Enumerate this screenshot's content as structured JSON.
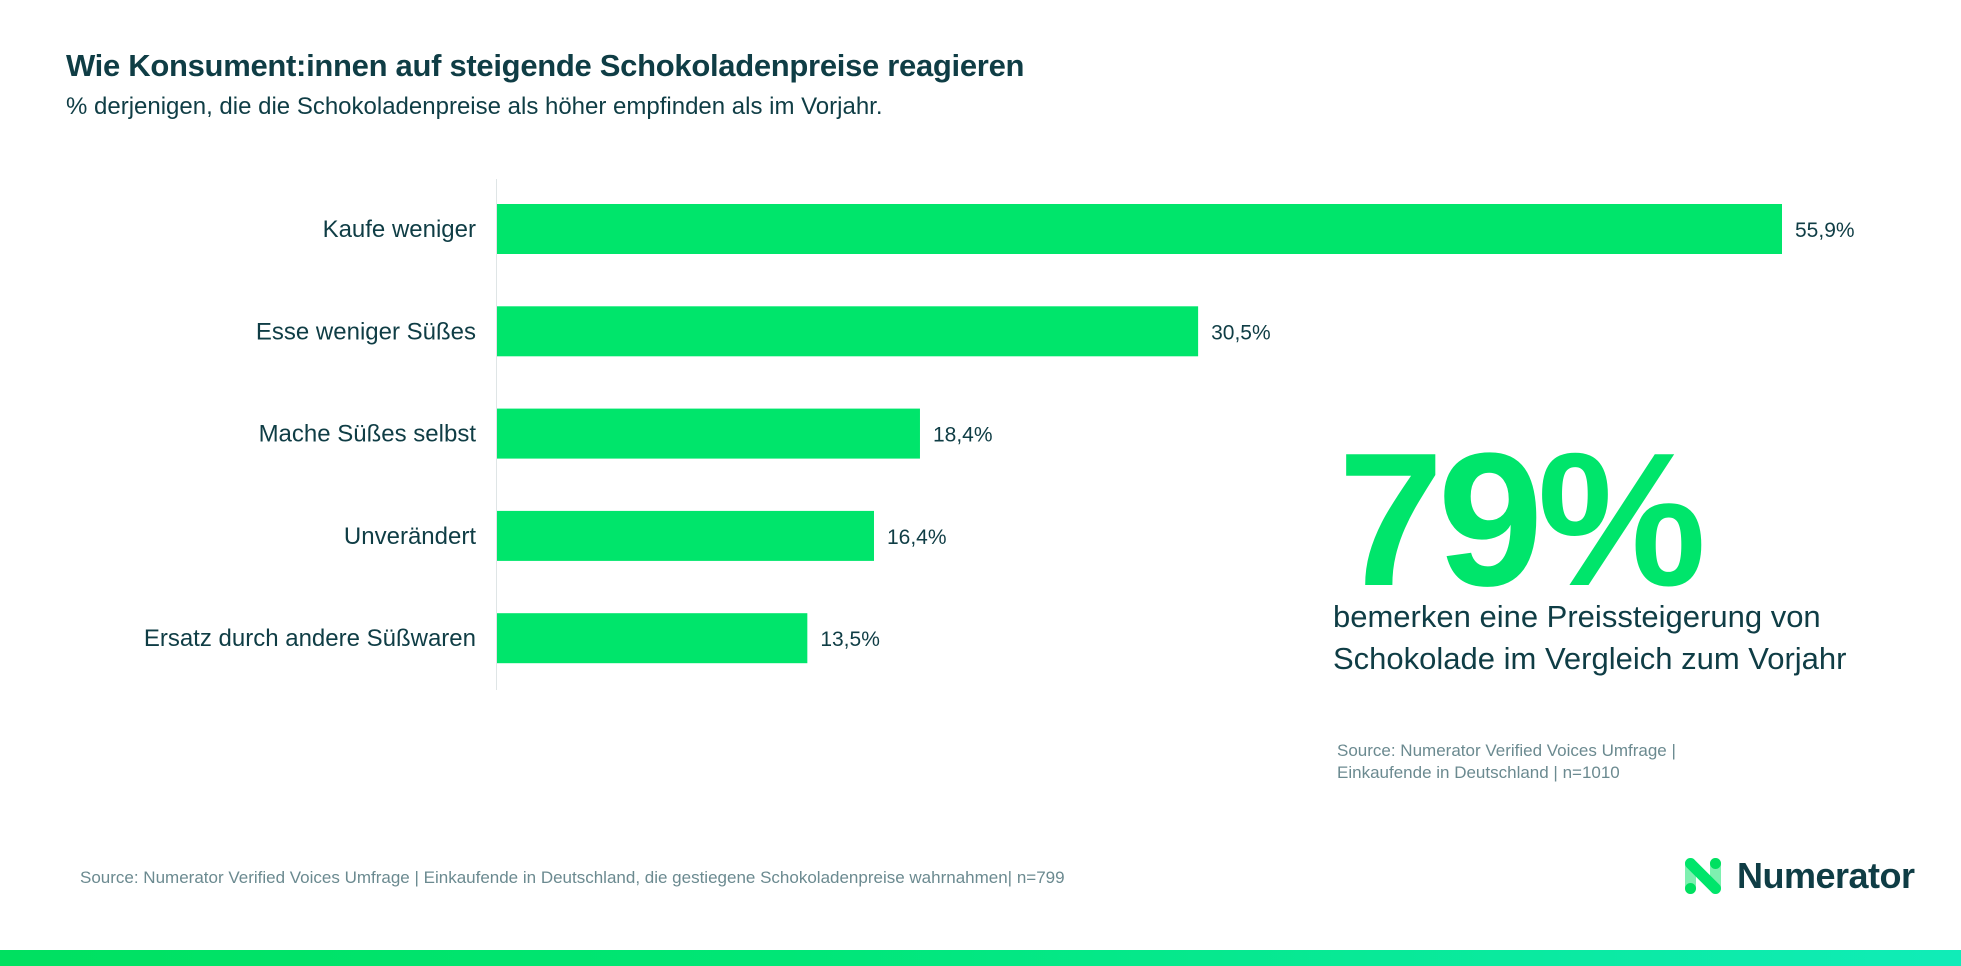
{
  "header": {
    "title": "Wie Konsument:innen auf steigende Schokoladenpreise reagieren",
    "subtitle": "% derjenigen, die die Schokoladenpreise als höher empfinden als im Vorjahr."
  },
  "chart_data": {
    "type": "bar",
    "orientation": "horizontal",
    "categories": [
      "Kaufe weniger",
      "Esse weniger Süßes",
      "Mache Süßes selbst",
      "Unverändert",
      "Ersatz durch andere Süßwaren"
    ],
    "values": [
      55.9,
      30.5,
      18.4,
      16.4,
      13.5
    ],
    "value_labels": [
      "55,9%",
      "30,5%",
      "18,4%",
      "16,4%",
      "13,5%"
    ],
    "unit": "%",
    "bar_color": "#00e56b",
    "grid": false,
    "xlim": [
      0,
      55.9
    ]
  },
  "callout": {
    "value": "79%",
    "text": "bemerken eine Preissteigerung von Schokolade im Vergleich zum Vorjahr",
    "source": "Source: Numerator Verified Voices Umfrage | Einkaufende in Deutschland | n=1010",
    "color": "#00e56b"
  },
  "footer": {
    "source": "Source: Numerator Verified Voices Umfrage | Einkaufende in Deutschland, die gestiegene Schokoladenpreise wahrnahmen| n=799",
    "logo_text": "Numerator"
  },
  "colors": {
    "text": "#0f3d45",
    "accent": "#00e56b",
    "muted": "#6b8a90"
  }
}
